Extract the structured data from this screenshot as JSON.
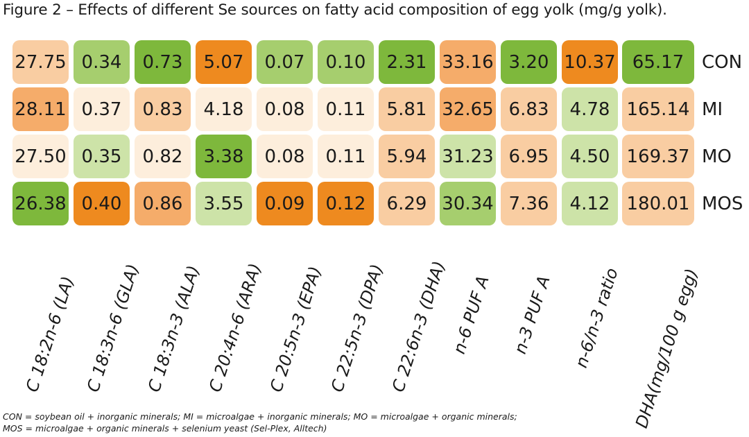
{
  "title": "Figure 2 – Effects of different Se sources on fatty acid composition of egg yolk (mg/g yolk).",
  "footnote": {
    "line1": "CON = soybean oil + inorganic minerals; MI = microalgae + inorganic minerals; MO = microalgae + organic minerals;",
    "line2": "MOS = microalgae + organic minerals + selenium yeast (Sel-Plex, Alltech)"
  },
  "colors": {
    "orange_high": "#EE8A1F",
    "orange_mid": "#F5AC6A",
    "peach": "#F9CDA2",
    "cream": "#FDEEDC",
    "green_light": "#CDE3A8",
    "green_mid": "#A6CE6E",
    "green_dark": "#7EB83C"
  },
  "chart_data": {
    "type": "heatmap",
    "rows": [
      "CON",
      "MI",
      "MO",
      "MOS"
    ],
    "columns": [
      "C 18:2n-6 (LA)",
      "C 18:3n-6 (GLA)",
      "C 18:3n-3 (ALA)",
      "C 20:4n-6 (ARA)",
      "C 20:5n-3 (EPA)",
      "C 22:5n-3 (DPA)",
      "C 22:6n-3 (DHA)",
      "n-6 PUF A",
      "n-3 PUF A",
      "n-6/n-3 ratio",
      "DHA(mg/100 g egg)"
    ],
    "values": [
      [
        "27.75",
        "0.34",
        "0.73",
        "5.07",
        "0.07",
        "0.10",
        "2.31",
        "33.16",
        "3.20",
        "10.37",
        "65.17"
      ],
      [
        "28.11",
        "0.37",
        "0.83",
        "4.18",
        "0.08",
        "0.11",
        "5.81",
        "32.65",
        "6.83",
        "4.78",
        "165.14"
      ],
      [
        "27.50",
        "0.35",
        "0.82",
        "3.38",
        "0.08",
        "0.11",
        "5.94",
        "31.23",
        "6.95",
        "4.50",
        "169.37"
      ],
      [
        "26.38",
        "0.40",
        "0.86",
        "3.55",
        "0.09",
        "0.12",
        "6.29",
        "30.34",
        "7.36",
        "4.12",
        "180.01"
      ]
    ],
    "cell_colors": [
      [
        "peach",
        "green_mid",
        "green_dark",
        "orange_high",
        "green_mid",
        "green_mid",
        "green_dark",
        "orange_mid",
        "green_dark",
        "orange_high",
        "green_dark"
      ],
      [
        "orange_mid",
        "cream",
        "peach",
        "cream",
        "cream",
        "cream",
        "peach",
        "orange_mid",
        "peach",
        "green_light",
        "peach"
      ],
      [
        "cream",
        "green_light",
        "cream",
        "green_dark",
        "cream",
        "cream",
        "peach",
        "green_light",
        "peach",
        "green_light",
        "peach"
      ],
      [
        "green_dark",
        "orange_high",
        "orange_mid",
        "green_light",
        "orange_high",
        "orange_high",
        "peach",
        "green_mid",
        "peach",
        "green_light",
        "peach"
      ]
    ]
  }
}
